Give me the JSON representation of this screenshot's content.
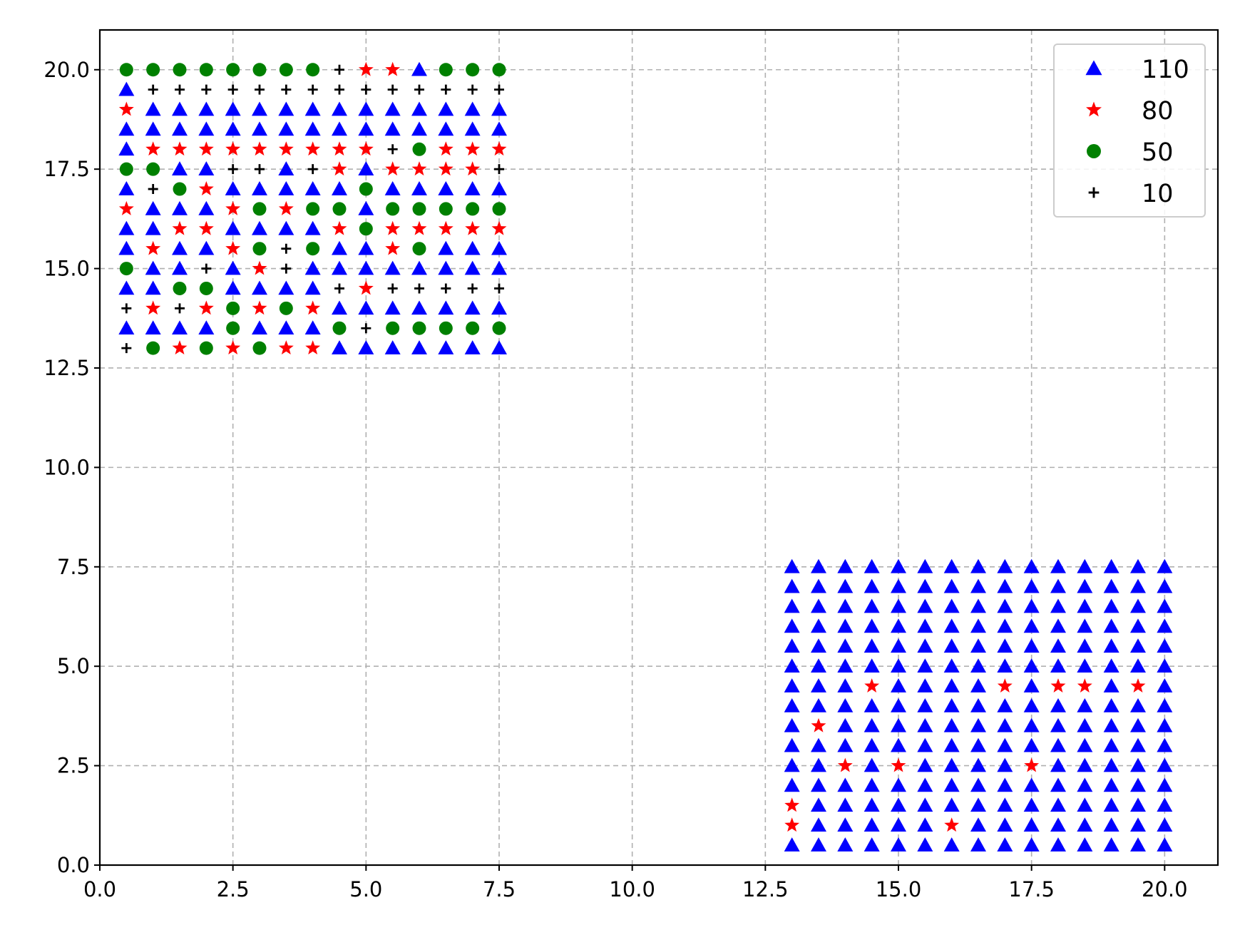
{
  "chart_data": {
    "type": "scatter",
    "title": "",
    "xlabel": "",
    "ylabel": "",
    "xlim": [
      0,
      21
    ],
    "ylim": [
      0,
      21
    ],
    "x_ticks": [
      "0.0",
      "2.5",
      "5.0",
      "7.5",
      "10.0",
      "12.5",
      "15.0",
      "17.5",
      "20.0"
    ],
    "y_ticks": [
      "0.0",
      "2.5",
      "5.0",
      "7.5",
      "10.0",
      "12.5",
      "15.0",
      "17.5",
      "20.0"
    ],
    "grid": true,
    "legend_position": "top-right",
    "series": [
      {
        "name": "110",
        "marker": "triangle",
        "color": "#0000ff"
      },
      {
        "name": "80",
        "marker": "star",
        "color": "#ff0000"
      },
      {
        "name": "50",
        "marker": "circle",
        "color": "#008000"
      },
      {
        "name": "10",
        "marker": "plus",
        "color": "#000000"
      }
    ],
    "upper_left_block": {
      "x": [
        0.5,
        1.0,
        1.5,
        2.0,
        2.5,
        3.0,
        3.5,
        4.0,
        4.5,
        5.0,
        5.5,
        6.0,
        6.5,
        7.0,
        7.5
      ],
      "y": [
        20.0,
        19.5,
        19.0,
        18.5,
        18.0,
        17.5,
        17.0,
        16.5,
        16.0,
        15.5,
        15.0,
        14.5,
        14.0,
        13.5,
        13.0
      ],
      "labels": [
        [
          "50",
          "50",
          "50",
          "50",
          "50",
          "50",
          "50",
          "50",
          "10",
          "80",
          "80",
          "110",
          "50",
          "50",
          "50"
        ],
        [
          "110",
          "10",
          "10",
          "10",
          "10",
          "10",
          "10",
          "10",
          "10",
          "10",
          "10",
          "10",
          "10",
          "10",
          "10"
        ],
        [
          "80",
          "110",
          "110",
          "110",
          "110",
          "110",
          "110",
          "110",
          "110",
          "110",
          "110",
          "110",
          "110",
          "110",
          "110"
        ],
        [
          "110",
          "110",
          "110",
          "110",
          "110",
          "110",
          "110",
          "110",
          "110",
          "110",
          "110",
          "110",
          "110",
          "110",
          "110"
        ],
        [
          "110",
          "80",
          "80",
          "80",
          "80",
          "80",
          "80",
          "80",
          "80",
          "80",
          "10",
          "50",
          "80",
          "80",
          "80"
        ],
        [
          "50",
          "50",
          "110",
          "110",
          "10",
          "10",
          "110",
          "10",
          "80",
          "110",
          "80",
          "80",
          "80",
          "80",
          "10"
        ],
        [
          "110",
          "10",
          "50",
          "80",
          "110",
          "110",
          "110",
          "110",
          "110",
          "50",
          "110",
          "110",
          "110",
          "110",
          "110"
        ],
        [
          "80",
          "110",
          "110",
          "110",
          "80",
          "50",
          "80",
          "50",
          "50",
          "110",
          "50",
          "50",
          "50",
          "50",
          "50"
        ],
        [
          "110",
          "110",
          "80",
          "80",
          "110",
          "110",
          "110",
          "110",
          "80",
          "50",
          "80",
          "80",
          "80",
          "80",
          "80"
        ],
        [
          "110",
          "80",
          "110",
          "110",
          "80",
          "50",
          "10",
          "50",
          "110",
          "110",
          "80",
          "50",
          "110",
          "110",
          "110"
        ],
        [
          "50",
          "110",
          "110",
          "10",
          "110",
          "80",
          "10",
          "110",
          "110",
          "110",
          "110",
          "110",
          "110",
          "110",
          "110"
        ],
        [
          "110",
          "110",
          "50",
          "50",
          "110",
          "110",
          "110",
          "110",
          "10",
          "80",
          "10",
          "10",
          "10",
          "10",
          "10"
        ],
        [
          "10",
          "80",
          "10",
          "80",
          "50",
          "80",
          "50",
          "80",
          "110",
          "110",
          "110",
          "110",
          "110",
          "110",
          "110"
        ],
        [
          "110",
          "110",
          "110",
          "110",
          "50",
          "110",
          "110",
          "110",
          "50",
          "10",
          "50",
          "50",
          "50",
          "50",
          "50"
        ],
        [
          "10",
          "50",
          "80",
          "50",
          "80",
          "50",
          "80",
          "80",
          "110",
          "110",
          "110",
          "110",
          "110",
          "110",
          "110"
        ]
      ]
    },
    "lower_right_block": {
      "x": [
        13.0,
        13.5,
        14.0,
        14.5,
        15.0,
        15.5,
        16.0,
        16.5,
        17.0,
        17.5,
        18.0,
        18.5,
        19.0,
        19.5,
        20.0
      ],
      "y": [
        7.5,
        7.0,
        6.5,
        6.0,
        5.5,
        5.0,
        4.5,
        4.0,
        3.5,
        3.0,
        2.5,
        2.0,
        1.5,
        1.0,
        0.5
      ],
      "default_label": "110",
      "overrides": [
        {
          "x": 14.5,
          "y": 4.5,
          "label": "80"
        },
        {
          "x": 17.0,
          "y": 4.5,
          "label": "80"
        },
        {
          "x": 18.0,
          "y": 4.5,
          "label": "80"
        },
        {
          "x": 18.5,
          "y": 4.5,
          "label": "80"
        },
        {
          "x": 19.5,
          "y": 4.5,
          "label": "80"
        },
        {
          "x": 13.5,
          "y": 3.5,
          "label": "80"
        },
        {
          "x": 14.0,
          "y": 2.5,
          "label": "80"
        },
        {
          "x": 15.0,
          "y": 2.5,
          "label": "80"
        },
        {
          "x": 17.5,
          "y": 2.5,
          "label": "80"
        },
        {
          "x": 16.0,
          "y": 1.0,
          "label": "80"
        },
        {
          "x": 13.0,
          "y": 1.0,
          "label": "80"
        },
        {
          "x": 13.0,
          "y": 1.5,
          "label": "80"
        }
      ]
    }
  }
}
